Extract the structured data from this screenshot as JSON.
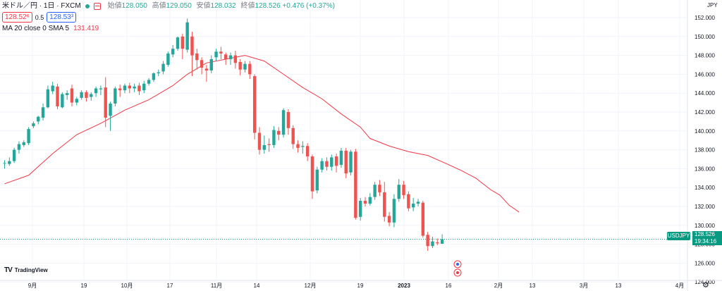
{
  "legend": {
    "symbol": "米ドル／円 · 1日 · FXCM",
    "open_label": "始値",
    "open": "128.050",
    "high_label": "高値",
    "high": "129.050",
    "low_label": "安値",
    "low": "128.032",
    "close_label": "終値",
    "close": "128.526",
    "change": "+0.476 (+0.37%)",
    "bid": "128.52⁶",
    "spread": "0.5",
    "ask": "128.53³",
    "indicator": "MA 20 close 0 SMA 5",
    "indicator_value": "131.419"
  },
  "currency": "JPY",
  "last_label": "USDJPY",
  "last_price": "128.526",
  "countdown": "19:34:16",
  "logo_text": "TradingView",
  "colors": {
    "up": "#26a69a",
    "down": "#ef5350",
    "ma": "#f23645",
    "grid": "#f0f3fa"
  },
  "chart_data": {
    "type": "candlestick",
    "y_axis_ticks": [
      "152.000",
      "150.000",
      "148.000",
      "146.000",
      "144.000",
      "142.000",
      "140.000",
      "138.000",
      "136.000",
      "134.000",
      "132.000",
      "130.000",
      "128.000",
      "126.000",
      "124.000"
    ],
    "ylim": [
      124,
      153
    ],
    "x_axis_ticks": [
      "9月",
      "19",
      "10月",
      "17",
      "11月",
      "14",
      "12月",
      "19",
      "2023",
      "16",
      "2月",
      "13",
      "3月",
      "13",
      "4月"
    ],
    "candles": [
      [
        136.6,
        136.6,
        136.0,
        136.9
      ],
      [
        136.5,
        136.8,
        136.3,
        137.2
      ],
      [
        136.8,
        138.0,
        136.6,
        138.2
      ],
      [
        138.0,
        138.6,
        137.6,
        138.9
      ],
      [
        138.5,
        138.8,
        138.3,
        139.0
      ],
      [
        138.7,
        140.2,
        138.5,
        140.4
      ],
      [
        140.5,
        140.8,
        140.3,
        141.0
      ],
      [
        141.0,
        141.5,
        140.7,
        141.6
      ],
      [
        141.4,
        142.5,
        141.1,
        142.9
      ],
      [
        142.5,
        144.4,
        142.4,
        144.8
      ],
      [
        144.2,
        144.8,
        143.9,
        145.2
      ],
      [
        144.7,
        142.6,
        142.3,
        145.0
      ],
      [
        142.5,
        143.9,
        142.4,
        144.1
      ],
      [
        143.8,
        144.0,
        143.3,
        144.3
      ],
      [
        144.5,
        143.0,
        142.6,
        144.9
      ],
      [
        143.0,
        143.4,
        142.7,
        143.6
      ],
      [
        143.5,
        144.1,
        143.3,
        144.3
      ],
      [
        144.1,
        143.5,
        143.1,
        144.3
      ],
      [
        143.6,
        143.9,
        143.2,
        144.1
      ],
      [
        144.0,
        144.5,
        143.6,
        144.7
      ],
      [
        144.4,
        144.5,
        143.8,
        144.8
      ],
      [
        144.6,
        141.4,
        140.4,
        145.7
      ],
      [
        141.6,
        142.9,
        140.0,
        143.1
      ],
      [
        142.9,
        144.5,
        142.6,
        144.7
      ],
      [
        144.5,
        144.3,
        143.6,
        144.9
      ],
      [
        144.3,
        144.8,
        144.0,
        145.0
      ],
      [
        144.8,
        144.5,
        144.0,
        145.1
      ],
      [
        144.5,
        144.7,
        144.1,
        145.0
      ],
      [
        144.8,
        144.2,
        143.8,
        145.1
      ],
      [
        144.3,
        145.0,
        144.0,
        145.3
      ],
      [
        145.0,
        145.4,
        144.8,
        145.6
      ],
      [
        145.4,
        146.1,
        145.2,
        146.2
      ],
      [
        146.1,
        146.2,
        145.8,
        146.5
      ],
      [
        146.3,
        147.1,
        146.0,
        147.4
      ],
      [
        147.0,
        148.2,
        146.8,
        148.4
      ],
      [
        148.1,
        148.7,
        147.8,
        149.1
      ],
      [
        148.7,
        149.9,
        148.5,
        150.0
      ],
      [
        150.0,
        148.7,
        147.6,
        150.3
      ],
      [
        148.6,
        151.5,
        148.3,
        151.9
      ],
      [
        150.0,
        148.0,
        145.8,
        150.5
      ],
      [
        148.2,
        147.5,
        146.5,
        148.7
      ],
      [
        147.5,
        146.7,
        146.0,
        147.8
      ],
      [
        146.6,
        146.4,
        145.2,
        147.0
      ],
      [
        146.4,
        147.6,
        146.1,
        148.0
      ],
      [
        147.8,
        148.4,
        147.4,
        148.7
      ],
      [
        148.4,
        148.2,
        147.6,
        148.9
      ],
      [
        148.1,
        147.6,
        147.0,
        148.3
      ],
      [
        147.6,
        148.0,
        147.0,
        148.3
      ],
      [
        148.0,
        147.2,
        146.6,
        148.5
      ],
      [
        147.3,
        146.5,
        145.9,
        147.6
      ],
      [
        146.5,
        147.1,
        146.2,
        147.4
      ],
      [
        147.1,
        146.0,
        145.5,
        147.4
      ],
      [
        145.8,
        139.8,
        139.1,
        146.0
      ],
      [
        139.8,
        138.0,
        137.5,
        140.4
      ],
      [
        138.0,
        138.5,
        137.6,
        139.5
      ],
      [
        138.6,
        138.5,
        137.8,
        139.2
      ],
      [
        138.5,
        140.1,
        138.2,
        140.5
      ],
      [
        140.0,
        139.6,
        139.0,
        140.4
      ],
      [
        139.6,
        142.2,
        139.3,
        142.4
      ],
      [
        142.0,
        140.3,
        139.6,
        142.3
      ],
      [
        140.3,
        138.6,
        138.1,
        140.6
      ],
      [
        138.6,
        138.2,
        137.7,
        139.0
      ],
      [
        138.3,
        138.4,
        137.6,
        138.9
      ],
      [
        138.4,
        137.3,
        136.8,
        138.7
      ],
      [
        137.3,
        133.6,
        132.8,
        137.5
      ],
      [
        133.7,
        135.9,
        133.4,
        136.2
      ],
      [
        135.9,
        136.8,
        135.6,
        137.1
      ],
      [
        136.8,
        136.2,
        135.8,
        137.2
      ],
      [
        136.2,
        137.2,
        135.8,
        137.5
      ],
      [
        137.3,
        136.3,
        135.6,
        137.6
      ],
      [
        136.4,
        137.9,
        136.1,
        138.2
      ],
      [
        137.9,
        135.5,
        135.0,
        138.2
      ],
      [
        135.6,
        137.8,
        135.3,
        138.0
      ],
      [
        137.8,
        130.8,
        130.6,
        138.1
      ],
      [
        130.9,
        132.6,
        130.5,
        132.9
      ],
      [
        132.6,
        132.3,
        132.0,
        133.0
      ],
      [
        132.3,
        133.0,
        132.1,
        133.4
      ],
      [
        133.0,
        134.3,
        132.7,
        134.6
      ],
      [
        134.3,
        133.5,
        133.1,
        134.8
      ],
      [
        133.5,
        130.9,
        130.4,
        134.6
      ],
      [
        131.0,
        130.3,
        129.9,
        131.4
      ],
      [
        130.3,
        132.8,
        129.8,
        133.3
      ],
      [
        132.8,
        134.3,
        132.5,
        134.9
      ],
      [
        134.3,
        133.2,
        132.8,
        134.7
      ],
      [
        133.3,
        131.8,
        131.5,
        133.6
      ],
      [
        131.9,
        132.3,
        131.5,
        132.9
      ],
      [
        132.3,
        132.5,
        132.0,
        132.8
      ],
      [
        132.4,
        128.9,
        128.7,
        132.6
      ],
      [
        129.0,
        127.8,
        127.3,
        129.3
      ],
      [
        127.8,
        128.3,
        127.6,
        128.8
      ],
      [
        128.2,
        128.1,
        127.9,
        128.6
      ],
      [
        128.05,
        128.526,
        128.032,
        129.05
      ]
    ],
    "ma": [
      [
        0,
        134.4
      ],
      [
        5,
        135.3
      ],
      [
        10,
        137.6
      ],
      [
        15,
        139.6
      ],
      [
        20,
        140.8
      ],
      [
        25,
        142.2
      ],
      [
        30,
        143.3
      ],
      [
        35,
        144.8
      ],
      [
        38,
        146.0
      ],
      [
        42,
        147.2
      ],
      [
        46,
        147.6
      ],
      [
        50,
        148.0
      ],
      [
        54,
        147.4
      ],
      [
        58,
        146.0
      ],
      [
        62,
        144.6
      ],
      [
        66,
        143.4
      ],
      [
        70,
        141.8
      ],
      [
        74,
        140.4
      ],
      [
        76,
        139.2
      ],
      [
        80,
        138.4
      ],
      [
        84,
        137.8
      ],
      [
        88,
        137.4
      ],
      [
        92,
        136.5
      ],
      [
        95,
        135.8
      ],
      [
        98,
        135.0
      ],
      [
        101,
        133.8
      ],
      [
        103,
        133.2
      ],
      [
        105,
        132.1
      ],
      [
        107,
        131.4
      ]
    ],
    "indicator_marks": [
      135,
      136
    ]
  }
}
